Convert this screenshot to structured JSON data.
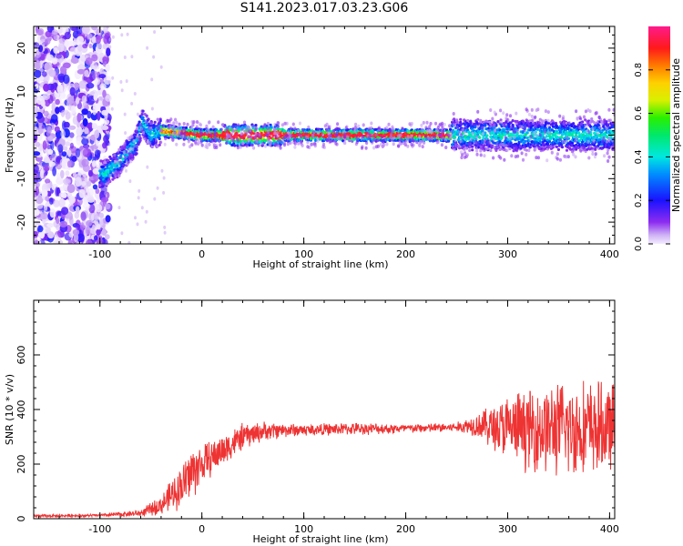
{
  "title": "S141.2023.017.03.23.G06",
  "chart_data": [
    {
      "type": "heatmap",
      "xlabel": "Height of straight line (km)",
      "ylabel": "Frequency (Hz)",
      "xlim": [
        -165,
        405
      ],
      "ylim": [
        -25,
        25
      ],
      "xticks": [
        -100,
        0,
        100,
        200,
        300,
        400
      ],
      "yticks": [
        -20,
        -10,
        0,
        10,
        20
      ],
      "colorbar": {
        "label": "Normalized spectral amplitude",
        "range": [
          0,
          1
        ],
        "ticks": [
          0.0,
          0.2,
          0.4,
          0.6,
          0.8
        ],
        "tick_labels": [
          "0.0",
          "0.2",
          "0.4",
          "0.6",
          "0.8"
        ],
        "colormap": "rainbow (white-lavender at 0, purple, blue, cyan, green, yellow, orange, red, magenta at 1)"
      },
      "description_points": {
        "ridge_center_hz": [
          {
            "x": -95,
            "f": -9
          },
          {
            "x": -80,
            "f": -6
          },
          {
            "x": -65,
            "f": -2
          },
          {
            "x": -58,
            "f": 3
          },
          {
            "x": -50,
            "f": 0
          },
          {
            "x": -40,
            "f": 1
          },
          {
            "x": -20,
            "f": 0.5
          },
          {
            "x": 0,
            "f": 0
          },
          {
            "x": 100,
            "f": 0
          },
          {
            "x": 245,
            "f": 0
          },
          {
            "x": 300,
            "f": 0
          },
          {
            "x": 400,
            "f": 0
          }
        ],
        "noise_region_x": [
          -165,
          -95
        ],
        "peak_amplitude_region_x": [
          -20,
          245
        ],
        "scattered_region_x": [
          245,
          405
        ]
      },
      "grid": false,
      "legend": "none"
    },
    {
      "type": "line",
      "xlabel": "Height of straight line (km)",
      "ylabel": "SNR (10 * v/v)",
      "xlim": [
        -165,
        405
      ],
      "ylim": [
        0,
        800
      ],
      "xticks": [
        -100,
        0,
        100,
        200,
        300,
        400
      ],
      "yticks": [
        0,
        200,
        400,
        600
      ],
      "series": [
        {
          "color": "#ee3333",
          "envelope": {
            "x": [
              -165,
              -100,
              -60,
              -40,
              -20,
              -10,
              0,
              20,
              40,
              60,
              80,
              100,
              150,
              200,
              250,
              270,
              300,
              330,
              360,
              380,
              405
            ],
            "mean": [
              10,
              12,
              20,
              50,
              120,
              170,
              200,
              250,
              300,
              320,
              325,
              325,
              330,
              330,
              335,
              345,
              330,
              330,
              330,
              330,
              330
            ],
            "spread": [
              6,
              6,
              15,
              40,
              90,
              120,
              80,
              70,
              55,
              40,
              30,
              25,
              25,
              20,
              20,
              50,
              140,
              180,
              200,
              200,
              180
            ]
          }
        }
      ],
      "grid": false,
      "legend": "none"
    }
  ]
}
